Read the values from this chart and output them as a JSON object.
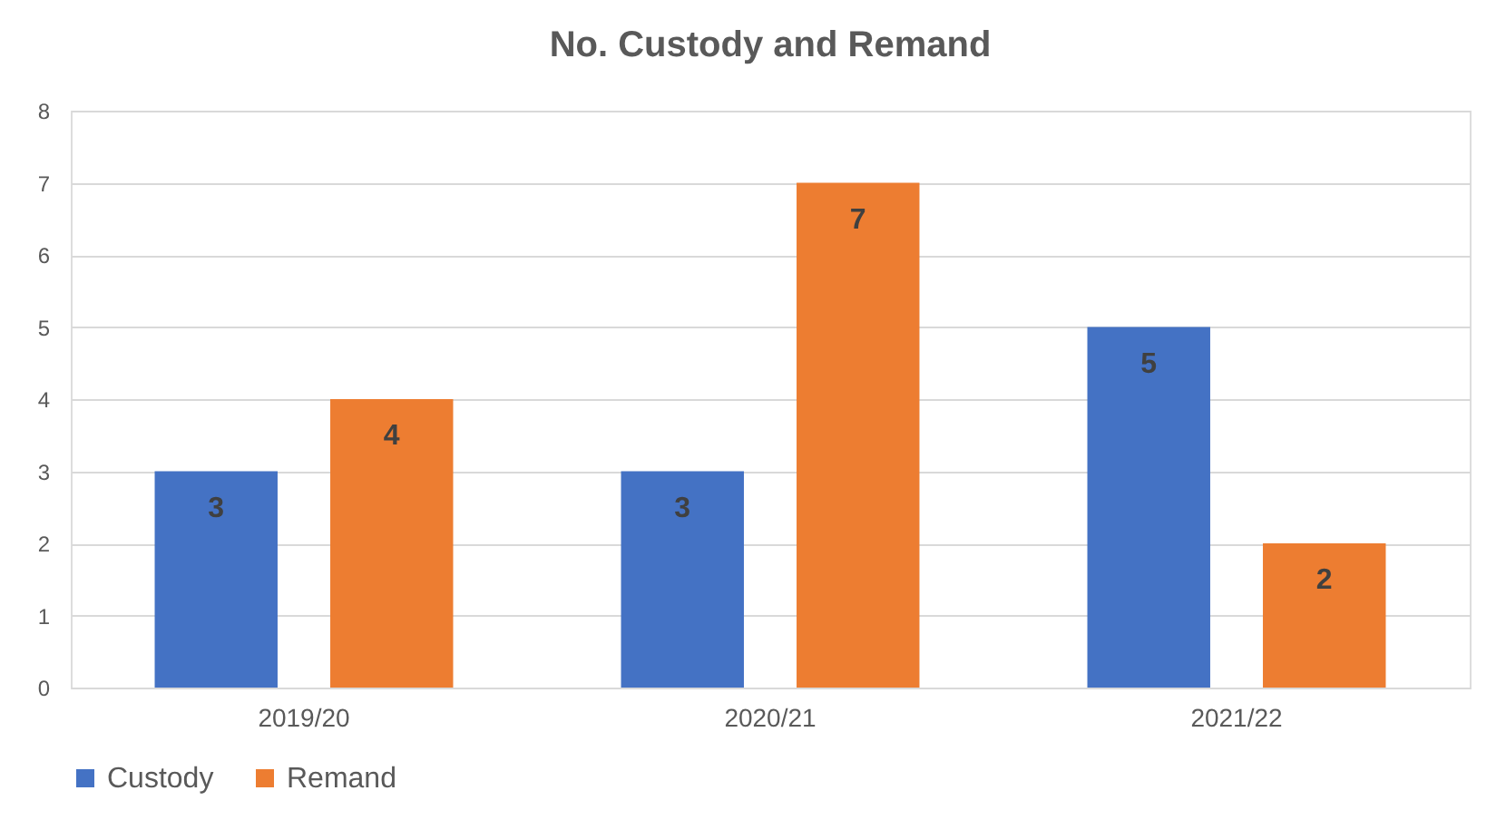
{
  "chart_data": {
    "type": "bar",
    "title": "No. Custody and Remand",
    "categories": [
      "2019/20",
      "2020/21",
      "2021/22"
    ],
    "series": [
      {
        "name": "Custody",
        "color": "#4472c4",
        "values": [
          3,
          3,
          5
        ]
      },
      {
        "name": "Remand",
        "color": "#ed7d31",
        "values": [
          4,
          7,
          2
        ]
      }
    ],
    "ylim": [
      0,
      8
    ],
    "yticks": [
      0,
      1,
      2,
      3,
      4,
      5,
      6,
      7,
      8
    ],
    "grid": "y",
    "legend": "bottom",
    "data_labels": true
  }
}
